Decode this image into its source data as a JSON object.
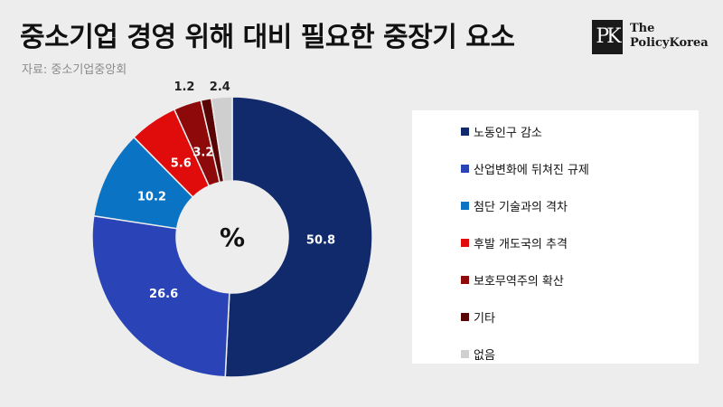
{
  "header": {
    "title": "중소기업 경영 위해 대비 필요한 중장기 요소",
    "source": "자료: 중소기업중앙회"
  },
  "logo": {
    "mark": "PK",
    "line1": "The",
    "line2": "PolicyKorea"
  },
  "chart_data": {
    "type": "pie",
    "center_label": "%",
    "legend_position": "right",
    "slices": [
      {
        "label": "노동인구 감소",
        "value": 50.8,
        "display": "50.8",
        "color": "#102a6b"
      },
      {
        "label": "산업변화에 뒤쳐진 규제",
        "value": 26.6,
        "display": "26.6",
        "color": "#2a44b8"
      },
      {
        "label": "첨단 기술과의 격차",
        "value": 10.2,
        "display": "10.2",
        "color": "#0a73c4"
      },
      {
        "label": "후발 개도국의 추격",
        "value": 5.6,
        "display": "5.6",
        "color": "#e00b0b"
      },
      {
        "label": "보호무역주의 확산",
        "value": 3.2,
        "display": "3.2",
        "color": "#8e0a0a"
      },
      {
        "label": "기타",
        "value": 1.2,
        "display": "1.2",
        "color": "#5a0505"
      },
      {
        "label": "없음",
        "value": 2.4,
        "display": "2.4",
        "color": "#cfcfcf"
      }
    ]
  }
}
